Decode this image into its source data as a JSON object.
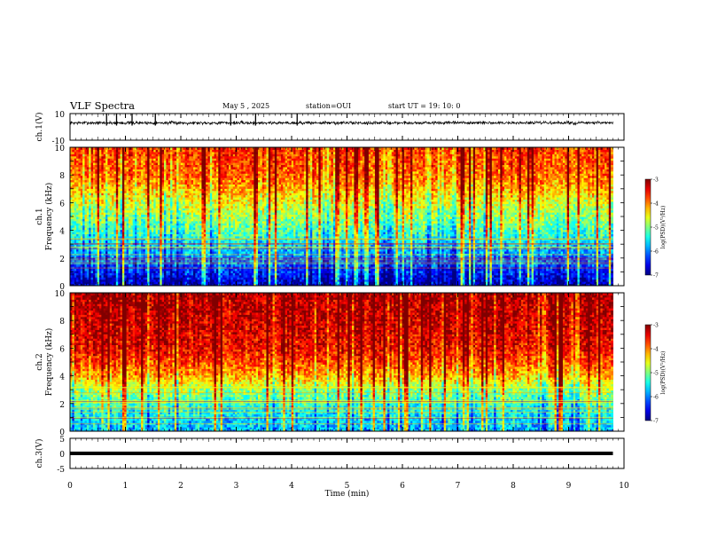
{
  "header": {
    "title": "VLF Spectra",
    "date": "May 5  , 2025",
    "station": "station=OUI",
    "start": "start  UT  =   19: 10: 0"
  },
  "chart_data": [
    {
      "type": "line",
      "panel": "ch1-waveform",
      "ylabel": "ch.1(V)",
      "ylim": [
        -10,
        10
      ],
      "ytick_labels": [
        "10",
        "-10"
      ],
      "x_range": [
        0,
        10
      ],
      "data_extent": [
        0,
        9.8
      ],
      "series": [
        {
          "baseline": 3.0,
          "noise_amplitude": 1.2,
          "spikes": [
            0.66,
            0.84,
            1.12,
            1.54,
            2.9,
            3.35,
            4.1
          ]
        }
      ]
    },
    {
      "type": "heatmap",
      "panel": "ch1-spectrogram",
      "ylabel": "ch.1  Frequency  (kHz)",
      "ylim": [
        0,
        10
      ],
      "ytick_labels": [
        "0",
        "2",
        "4",
        "6",
        "8",
        "10"
      ],
      "x_range": [
        0,
        10
      ],
      "data_extent": [
        0,
        9.8
      ],
      "level_profile_by_freq_kHz": [
        [
          0,
          -6.8
        ],
        [
          1,
          -6.4
        ],
        [
          2,
          -6.0
        ],
        [
          3,
          -5.6
        ],
        [
          4,
          -5.2
        ],
        [
          5,
          -4.9
        ],
        [
          6,
          -4.6
        ],
        [
          7,
          -4.2
        ],
        [
          8,
          -3.9
        ],
        [
          10,
          -3.7
        ]
      ],
      "colorbar": {
        "label": "log(PSD)(V²/Hz)",
        "range": [
          -7,
          -3
        ],
        "tick_labels": [
          "-3",
          "-4",
          "-5",
          "-6",
          "-7"
        ]
      }
    },
    {
      "type": "heatmap",
      "panel": "ch2-spectrogram",
      "ylabel": "ch.2  Frequency  (kHz)",
      "ylim": [
        0,
        10
      ],
      "ytick_labels": [
        "0",
        "2",
        "4",
        "6",
        "8",
        "10"
      ],
      "x_range": [
        0,
        10
      ],
      "data_extent": [
        0,
        9.8
      ],
      "level_profile_by_freq_kHz": [
        [
          0,
          -5.8
        ],
        [
          1,
          -5.6
        ],
        [
          2,
          -5.3
        ],
        [
          3,
          -4.9
        ],
        [
          4,
          -4.2
        ],
        [
          5,
          -3.8
        ],
        [
          6,
          -3.5
        ],
        [
          8,
          -3.3
        ],
        [
          10,
          -3.2
        ]
      ],
      "colorbar": {
        "label": "log(PSD)(V²/Hz)",
        "range": [
          -7,
          -3
        ],
        "tick_labels": [
          "-3",
          "-4",
          "-5",
          "-6",
          "-7"
        ]
      }
    },
    {
      "type": "line",
      "panel": "ch3-waveform",
      "ylabel": "ch.3(V)",
      "ylim": [
        -5,
        5
      ],
      "ytick_labels": [
        "5",
        "0",
        "-5"
      ],
      "x_range": [
        0,
        10
      ],
      "data_extent": [
        0,
        9.8
      ],
      "series": [
        {
          "value": 0
        }
      ]
    }
  ],
  "xaxis": {
    "label": "Time  (min)",
    "tick_labels": [
      "0",
      "1",
      "2",
      "3",
      "4",
      "5",
      "6",
      "7",
      "8",
      "9",
      "10"
    ]
  }
}
